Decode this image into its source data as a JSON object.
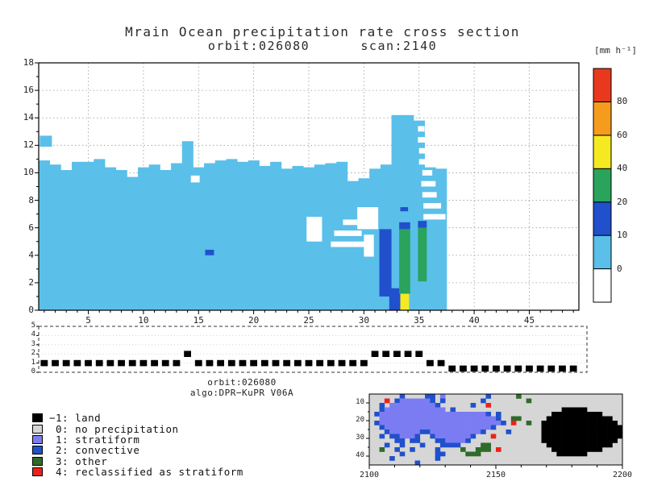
{
  "title": "Mrain Ocean precipitation rate cross section",
  "subtitle": "orbit:026080      scan:2140",
  "colorbar_unit_label": "[mm h⁻¹]",
  "annotation": {
    "orbit": "orbit:026080",
    "algo": "algo:DPR−KuPR V06A"
  },
  "legend": {
    "items": [
      {
        "value": -1,
        "label": "−1: land",
        "color": "#000000"
      },
      {
        "value": 0,
        "label": " 0: no precipitation",
        "color": "#d6d6d6"
      },
      {
        "value": 1,
        "label": " 1: stratiform",
        "color": "#7c7cf2"
      },
      {
        "value": 2,
        "label": " 2: convective",
        "color": "#2150cd"
      },
      {
        "value": 3,
        "label": " 3: other",
        "color": "#2e6b28"
      },
      {
        "value": 4,
        "label": " 4: reclassified as stratiform",
        "color": "#ee2119"
      }
    ]
  },
  "chart_data": [
    {
      "id": "cross_section",
      "type": "heatmap",
      "title": "Mrain Ocean precipitation rate cross section",
      "subtitle": "orbit:026080 scan:2140",
      "xlabel": "",
      "ylabel": "",
      "unit": "mm h⁻¹",
      "xlim": [
        0.5,
        49.5
      ],
      "ylim": [
        0,
        18
      ],
      "x_ticks": [
        5,
        10,
        15,
        20,
        25,
        30,
        35,
        40,
        45
      ],
      "y_ticks": [
        0,
        2,
        4,
        6,
        8,
        10,
        12,
        14,
        16,
        18
      ],
      "grid": "dashed",
      "palette": {
        "light_blue": "#5abfe9",
        "blue": "#2150cd",
        "green": "#2aa35c",
        "yellow": "#f5ea21",
        "orange": "#f59b1e",
        "red": "#e8391f"
      },
      "colorbar": {
        "levels": [
          0,
          10,
          20,
          40,
          60,
          80
        ],
        "colors_bottom_to_top": [
          "#ffffff",
          "#5abfe9",
          "#2150cd",
          "#2aa35c",
          "#f5ea21",
          "#f59b1e",
          "#e8391f"
        ]
      },
      "background_value_range": "0-10",
      "rain_top_height_by_ray": [
        10.9,
        10.6,
        10.2,
        10.8,
        10.8,
        11,
        10.4,
        10.2,
        9.7,
        10.4,
        10.6,
        10.2,
        10.7,
        12.3,
        10.4,
        10.7,
        10.9,
        11,
        10.8,
        10.9,
        10.5,
        10.8,
        10.3,
        10.5,
        10.4,
        10.6,
        10.7,
        10.8,
        9.4,
        9.6,
        10.3,
        10.6,
        14.2,
        14.2,
        13.8,
        10.4,
        10.3,
        0,
        0,
        0,
        0,
        0,
        0,
        0,
        0,
        0,
        0,
        0,
        0
      ],
      "holes_no_rain": [
        {
          "x0": 24.8,
          "x1": 26.2,
          "y0": 5.0,
          "y1": 6.8
        },
        {
          "x0": 27.0,
          "x1": 30.2,
          "y0": 4.6,
          "y1": 5.0
        },
        {
          "x0": 27.3,
          "x1": 29.8,
          "y0": 5.4,
          "y1": 5.8
        },
        {
          "x0": 28.1,
          "x1": 29.4,
          "y0": 6.2,
          "y1": 6.6
        },
        {
          "x0": 29.4,
          "x1": 31.3,
          "y0": 5.9,
          "y1": 7.5
        },
        {
          "x0": 30.0,
          "x1": 30.9,
          "y0": 3.9,
          "y1": 5.5
        },
        {
          "x0": 14.3,
          "x1": 15.1,
          "y0": 9.3,
          "y1": 9.8
        },
        {
          "x0": 35.4,
          "x1": 37.4,
          "y0": 6.6,
          "y1": 7.0
        },
        {
          "x0": 35.4,
          "x1": 37.0,
          "y0": 7.4,
          "y1": 7.8
        },
        {
          "x0": 35.3,
          "x1": 36.6,
          "y0": 8.2,
          "y1": 8.6
        },
        {
          "x0": 35.2,
          "x1": 36.5,
          "y0": 9.0,
          "y1": 9.4
        },
        {
          "x0": 35.3,
          "x1": 36.2,
          "y0": 9.8,
          "y1": 10.2
        },
        {
          "x0": 35.0,
          "x1": 35.9,
          "y0": 10.6,
          "y1": 11.0
        },
        {
          "x0": 35.0,
          "x1": 35.7,
          "y0": 11.4,
          "y1": 11.8
        },
        {
          "x0": 34.9,
          "x1": 35.6,
          "y0": 12.2,
          "y1": 12.6
        },
        {
          "x0": 34.9,
          "x1": 35.5,
          "y0": 13.0,
          "y1": 13.4
        }
      ],
      "detached_echoes": [
        {
          "x0": 0.6,
          "x1": 1.7,
          "y0": 11.9,
          "y1": 12.7
        }
      ],
      "high_rate_cells": [
        {
          "value_range": "10-20",
          "color_key": "blue",
          "x0": 31.4,
          "x1": 32.5,
          "y0": 1.0,
          "y1": 5.9
        },
        {
          "value_range": "10-20",
          "color_key": "blue",
          "x0": 32.3,
          "x1": 33.3,
          "y0": 0.0,
          "y1": 1.6
        },
        {
          "value_range": "20-40",
          "color_key": "green",
          "x0": 33.2,
          "x1": 34.2,
          "y0": 1.2,
          "y1": 5.9
        },
        {
          "value_range": "40-60",
          "color_key": "yellow",
          "x0": 33.3,
          "x1": 34.1,
          "y0": 0.0,
          "y1": 1.2
        },
        {
          "value_range": "10-20",
          "color_key": "blue",
          "x0": 33.2,
          "x1": 34.2,
          "y0": 5.9,
          "y1": 6.4
        },
        {
          "value_range": "20-40",
          "color_key": "green",
          "x0": 34.9,
          "x1": 35.7,
          "y0": 2.1,
          "y1": 6.0
        },
        {
          "value_range": "10-20",
          "color_key": "blue",
          "x0": 34.9,
          "x1": 35.7,
          "y0": 6.0,
          "y1": 6.5
        },
        {
          "value_range": "10-20",
          "color_key": "blue",
          "x0": 15.6,
          "x1": 16.4,
          "y0": 4.0,
          "y1": 4.4
        },
        {
          "value_range": "10-20",
          "color_key": "blue",
          "x0": 33.3,
          "x1": 34.0,
          "y0": 7.2,
          "y1": 7.5
        }
      ]
    },
    {
      "id": "rain_type_flag_strip",
      "type": "scatter",
      "marker": "filled-square",
      "xlim": [
        0.5,
        49.5
      ],
      "ylim": [
        0,
        5
      ],
      "y_ticks": [
        0,
        1,
        2,
        3,
        4,
        5
      ],
      "flag_by_ray": [
        1,
        1,
        1,
        1,
        1,
        1,
        1,
        1,
        1,
        1,
        1,
        1,
        1,
        2,
        1,
        1,
        1,
        1,
        1,
        1,
        1,
        1,
        1,
        1,
        1,
        1,
        1,
        1,
        1,
        1,
        2,
        2,
        2,
        2,
        2,
        1,
        1,
        0,
        0,
        0,
        0,
        0,
        0,
        0,
        0,
        0,
        0,
        0,
        0
      ]
    },
    {
      "id": "precip_classification_map",
      "type": "heatmap",
      "xlim": [
        2100,
        2200
      ],
      "ylim": [
        5,
        45
      ],
      "y_axis_inverted": true,
      "x_ticks": [
        2100,
        2150,
        2200
      ],
      "y_ticks": [
        10,
        20,
        30,
        40
      ],
      "classes": {
        ".": "no precipitation",
        "S": "stratiform",
        "C": "convective",
        "O": "other",
        "R": "reclassified as stratiform",
        "L": "land"
      },
      "class_colors": {
        ".": "#d6d6d6",
        "S": "#7c7cf2",
        "C": "#2150cd",
        "O": "#2e6b28",
        "R": "#ee2119",
        "L": "#000000"
      },
      "grid_rows": [
        "......C....CC.S........C.....O....................",
        "...R.CSSSSSSC.C.......C........O..................",
        "..C.SSSSSSSSSC......C..R..........................",
        "..CSSSSSSSSSSSS.C.....................LLLLL.......",
        ".CSSSSSSSSSSSSSSSSSSSSSC.C..........LLLLLLLLLL....",
        "..SSSSSSSSSSSSSSSSSSSSSSSC..OO.....LLLLLLLLLLLLL..",
        ".CSSSSSSSSSSSSSSSSSSSSSSSSC.R..O..LLLLLLLLLLLLLLL.",
        "..CSSSSSSSSSSSSSSSSSSSSSC.........LLLLLLLLLLLLLLLL",
        "...CSSSSSSCCSSSSSSSSSSC....C......LLLLLLLLLLLLLLLL",
        "..C.CCSSSC..CSSSSSSSC...R.........LLLLLLLLLLLLLLLL",
        ".....CC.CC...CCSSSSC..............LLLLLLLLLLLLLLL.",
        "...C..C...C...CCCC....OO...........LLLLLLLLLLLLL..",
        "..O..C..C....C....O..OOO.R..........LLLLLLLLLL....",
        "......C......CC....OOO...............LLLLLL.......",
        "....C........C....................................",
        ".........C........................................"
      ]
    }
  ]
}
